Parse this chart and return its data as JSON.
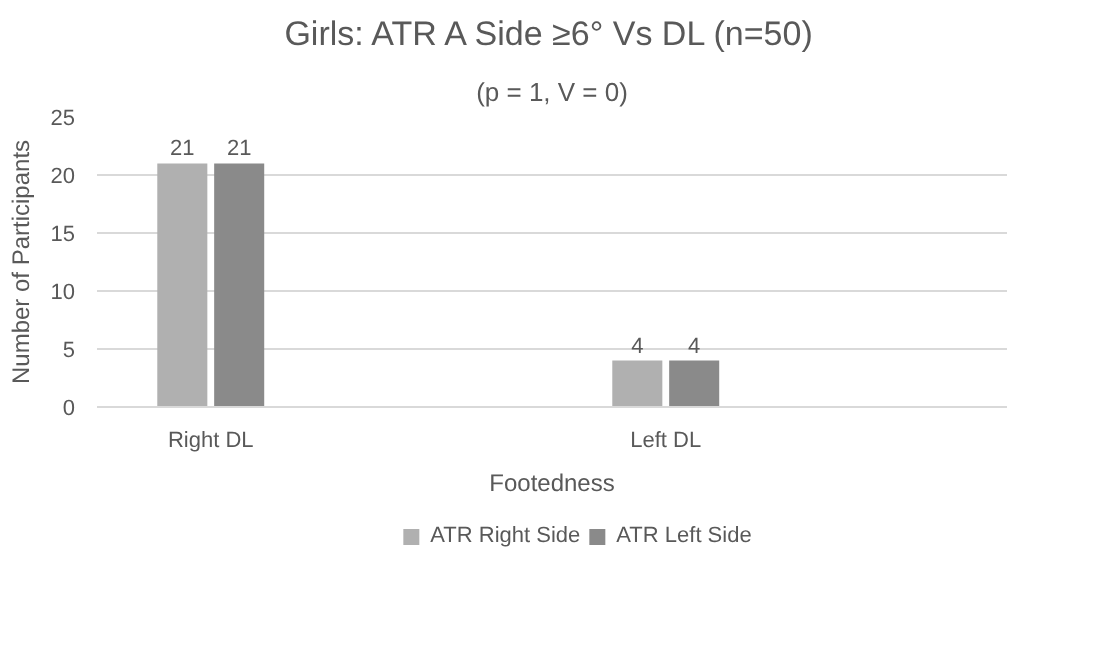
{
  "chart_data": {
    "type": "bar",
    "title": "Girls: ATR A Side ≥6° Vs DL (n=50)",
    "subtitle": "(p = 1, V = 0)",
    "xlabel": "Footedness",
    "ylabel": "Number of Participants",
    "categories": [
      "Right DL",
      null,
      "Left DL",
      null
    ],
    "series": [
      {
        "name": "ATR Right Side",
        "color": "#b0b0b0",
        "values": [
          21,
          null,
          4,
          null
        ]
      },
      {
        "name": "ATR Left Side",
        "color": "#8a8a8a",
        "values": [
          21,
          null,
          4,
          null
        ]
      }
    ],
    "ylim": [
      0,
      25
    ],
    "yticks": [
      0,
      5,
      10,
      15,
      20,
      25
    ],
    "grid": "y",
    "legend": "bottom",
    "data_labels": true
  }
}
